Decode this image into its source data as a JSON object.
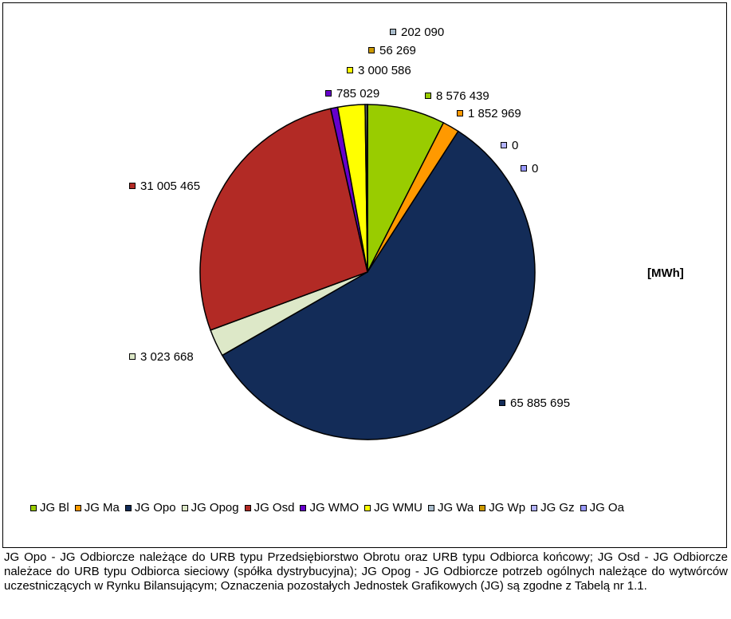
{
  "chart_data": {
    "type": "pie",
    "unit_label": "[MWh]",
    "slices": [
      {
        "name": "JG Bl",
        "value": 8576439,
        "label": "8 576 439",
        "color": "#99CC00"
      },
      {
        "name": "JG Ma",
        "value": 1852969,
        "label": "1 852 969",
        "color": "#FF9900"
      },
      {
        "name": "JG Opo",
        "value": 65885695,
        "label": "65 885 695",
        "color": "#132C58"
      },
      {
        "name": "JG Opog",
        "value": 3023668,
        "label": "3 023 668",
        "color": "#DDE8C8"
      },
      {
        "name": "JG Osd",
        "value": 31005465,
        "label": "31 005 465",
        "color": "#B22A25"
      },
      {
        "name": "JG WMO",
        "value": 785029,
        "label": "785 029",
        "color": "#6600CC"
      },
      {
        "name": "JG WMU",
        "value": 3000586,
        "label": "3 000 586",
        "color": "#FFFF00"
      },
      {
        "name": "JG Wa",
        "value": 202090,
        "label": "202 090",
        "color": "#A9BCCB"
      },
      {
        "name": "JG Wp",
        "value": 56269,
        "label": "56 269",
        "color": "#CC9900"
      },
      {
        "name": "JG Gz",
        "value": 0,
        "label": "0",
        "color": "#B3B3FF"
      },
      {
        "name": "JG Oa",
        "value": 0,
        "label": "0",
        "color": "#9999FF"
      }
    ],
    "legend_position": "bottom"
  },
  "footnote": "JG Opo - JG Odbiorcze należące do URB typu Przedsiębiorstwo Obrotu oraz URB typu Odbiorca końcowy; JG Osd - JG Odbiorcze należace do URB typu Odbiorca sieciowy (spółka dystrybucyjna); JG Opog - JG Odbiorcze potrzeb ogólnych należące do wytwórców uczestniczących w Rynku Bilansującym; Oznaczenia pozostałych Jednostek Grafikowych (JG) są zgodne z Tabelą  nr 1.1."
}
